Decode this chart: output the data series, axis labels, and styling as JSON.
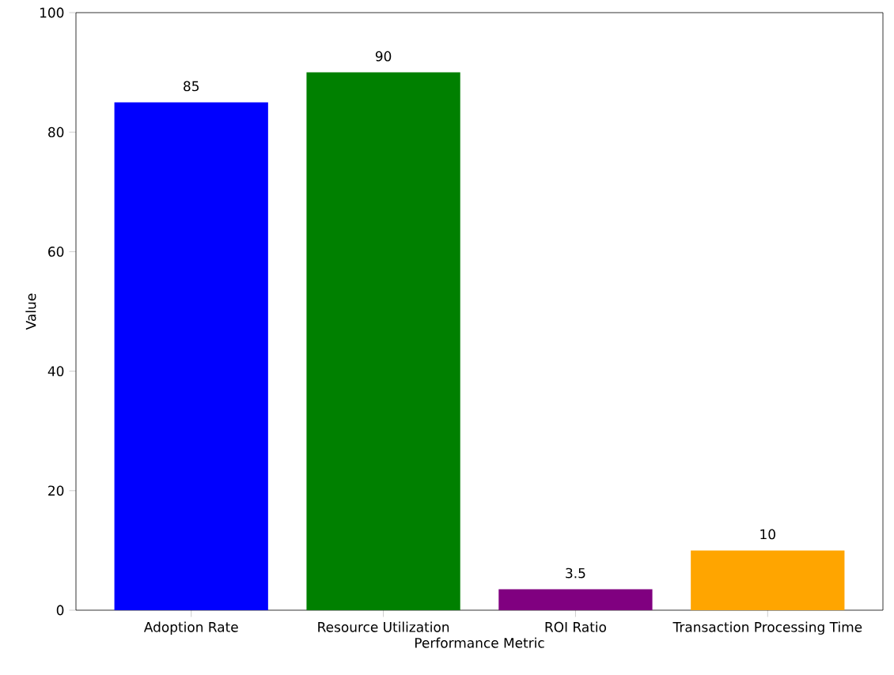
{
  "chart_data": {
    "type": "bar",
    "xlabel": "Performance Metric",
    "ylabel": "Value",
    "categories": [
      "Adoption Rate",
      "Resource Utilization",
      "ROI Ratio",
      "Transaction Processing Time"
    ],
    "values": [
      85,
      90,
      3.5,
      10
    ],
    "colors": [
      "#0000ff",
      "#008000",
      "#800080",
      "#ffa500"
    ],
    "ylim": [
      0,
      100
    ],
    "yticks": [
      0,
      20,
      40,
      60,
      80,
      100
    ],
    "data_labels": true
  }
}
